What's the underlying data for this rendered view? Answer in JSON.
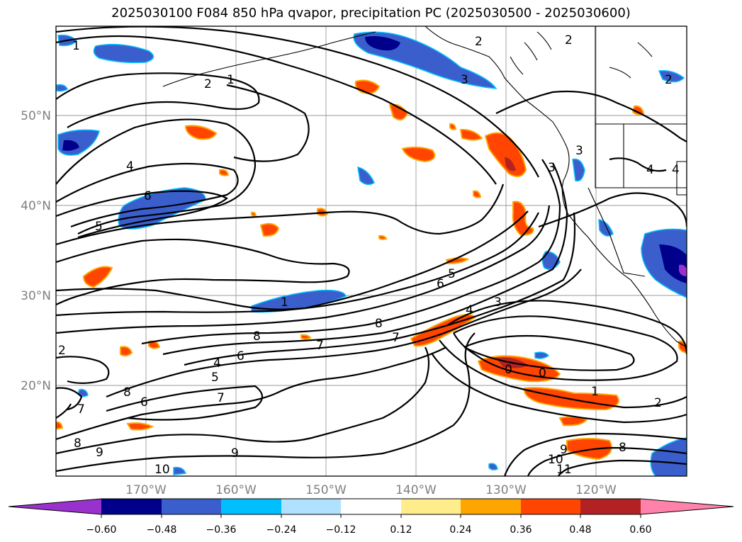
{
  "title": "2025030100 F084 850 hPa qvapor, precipitation PC (2025030500 - 2025030600)",
  "map": {
    "lon_labels": [
      "170°W",
      "160°W",
      "150°W",
      "140°W",
      "130°W",
      "120°W"
    ],
    "lat_labels": [
      "50°N",
      "40°N",
      "30°N",
      "20°N"
    ],
    "contour_labels": [
      "1",
      "2",
      "1",
      "2",
      "3",
      "2",
      "2",
      "4",
      "6",
      "5",
      "4",
      "3",
      "4",
      "3",
      "1",
      "5",
      "6",
      "8",
      "7",
      "8",
      "7",
      "4",
      "3",
      "0",
      "0",
      "1",
      "2",
      "4",
      "6",
      "5",
      "7",
      "8",
      "6",
      "7",
      "8",
      "9",
      "9",
      "10",
      "10",
      "11",
      "8",
      "9",
      "2"
    ]
  },
  "colorbar": {
    "ticks": [
      "−0.60",
      "−0.48",
      "−0.36",
      "−0.24",
      "−0.12",
      "0.12",
      "0.24",
      "0.36",
      "0.48",
      "0.60"
    ],
    "colors": [
      "#9932cc",
      "#00008b",
      "#3a5fcd",
      "#00bfff",
      "#b0e2ff",
      "#ffffff",
      "#ffec8b",
      "#ffa500",
      "#ff4500",
      "#b22222",
      "#ff82ab"
    ]
  }
}
